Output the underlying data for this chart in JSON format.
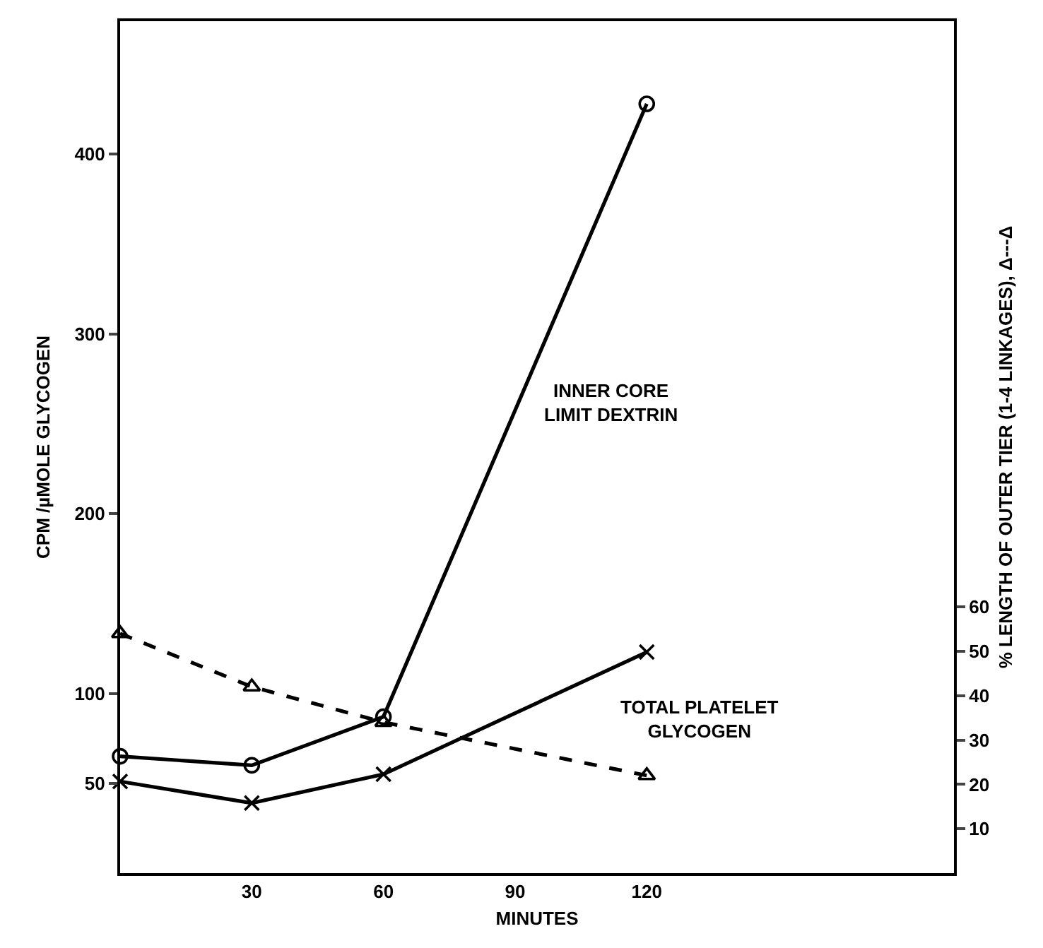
{
  "chart_data": {
    "type": "line",
    "xlabel": "MINUTES",
    "ylabel": "CPM /µMOLE GLYCOGEN",
    "y2label": "% LENGTH OF OUTER TIER (1-4 LINKAGES), Δ---Δ",
    "x": [
      0,
      30,
      60,
      120
    ],
    "xlim": [
      0,
      190
    ],
    "xticks": [
      30,
      60,
      90,
      120
    ],
    "ylim": [
      0,
      474
    ],
    "yticks": [
      50,
      100,
      200,
      300,
      400
    ],
    "y2lim": [
      0,
      192
    ],
    "y2ticks": [
      10,
      20,
      30,
      40,
      50,
      60
    ],
    "legend": false,
    "grid": false,
    "series": [
      {
        "name": "INNER CORE LIMIT DEXTRIN",
        "color": "#000000",
        "values": [
          65,
          60,
          87,
          428
        ],
        "marker": "circle",
        "line_style": "solid"
      },
      {
        "name": "TOTAL PLATELET GLYCOGEN",
        "color": "#000000",
        "values": [
          51,
          39,
          55,
          123
        ],
        "marker": "cross",
        "line_style": "solid"
      },
      {
        "color": "#000000",
        "values": [
          54,
          42,
          34,
          22
        ],
        "marker": "triangle",
        "line_style": "dashed",
        "axis": "y2"
      }
    ]
  }
}
